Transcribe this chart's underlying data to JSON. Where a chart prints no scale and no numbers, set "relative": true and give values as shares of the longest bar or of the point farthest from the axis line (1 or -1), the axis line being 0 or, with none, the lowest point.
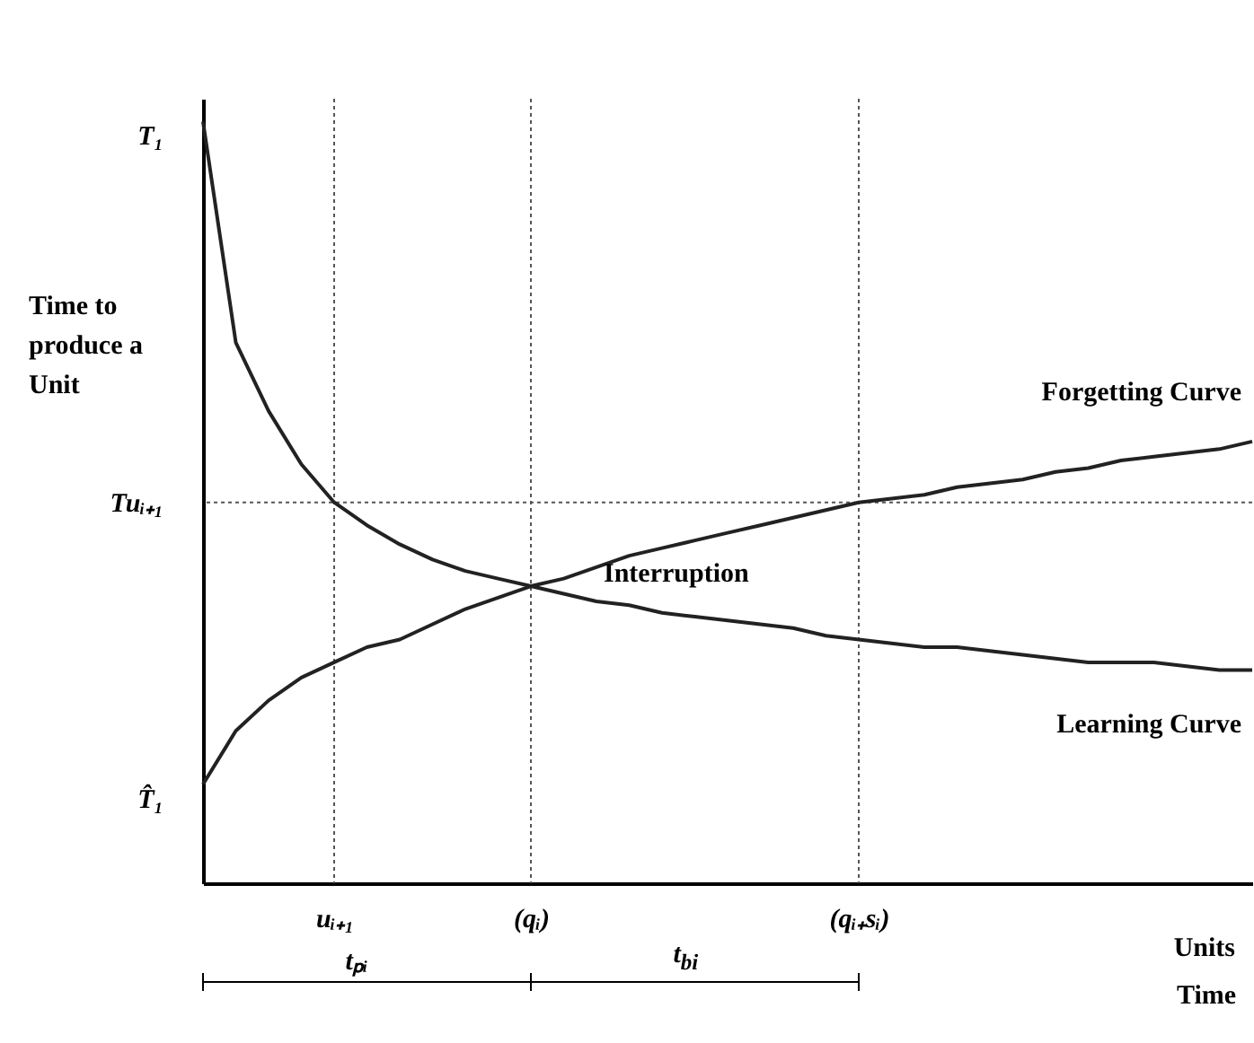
{
  "chart_data": {
    "type": "line",
    "relative": true,
    "ylabel": "Time to produce a Unit",
    "xlabel": "Units",
    "categories": [
      null,
      null,
      null,
      null,
      "uᵢ₊₁",
      null,
      null,
      null,
      null,
      null,
      "(qᵢ)",
      null,
      null,
      null,
      null,
      null,
      null,
      null,
      null,
      null,
      "(qᵢ₊sᵢ)",
      null,
      null,
      null,
      null,
      null,
      null,
      null,
      null,
      null,
      null,
      null,
      null
    ],
    "series": [
      {
        "name": "Forgetting Curve",
        "color": "#222222",
        "values": [
          0.13,
          0.2,
          0.24,
          0.27,
          0.29,
          0.31,
          0.32,
          0.34,
          0.36,
          0.375,
          0.39,
          0.4,
          0.415,
          0.43,
          0.44,
          0.45,
          0.46,
          0.47,
          0.48,
          0.49,
          0.5,
          0.505,
          0.51,
          0.52,
          0.525,
          0.53,
          0.54,
          0.545,
          0.555,
          0.56,
          0.565,
          0.57,
          0.58
        ]
      },
      {
        "name": "Learning Curve",
        "color": "#222222",
        "values": [
          1.0,
          0.71,
          0.62,
          0.55,
          0.5,
          0.47,
          0.445,
          0.425,
          0.41,
          0.4,
          0.39,
          0.38,
          0.37,
          0.365,
          0.355,
          0.35,
          0.345,
          0.34,
          0.335,
          0.325,
          0.32,
          0.315,
          0.31,
          0.31,
          0.305,
          0.3,
          0.295,
          0.29,
          0.29,
          0.29,
          0.285,
          0.28,
          0.28
        ]
      }
    ],
    "ref_lines": [
      {
        "axis": "y",
        "value": 0.5,
        "label": "Tuᵢ₊₁",
        "line_style": "dotted",
        "color": "#555555"
      },
      {
        "axis": "x",
        "value": "uᵢ₊₁",
        "line_style": "dotted",
        "color": "#555555"
      },
      {
        "axis": "x",
        "value": "(qᵢ)",
        "line_style": "dotted",
        "color": "#555555"
      },
      {
        "axis": "x",
        "value": "(qᵢ₊sᵢ)",
        "line_style": "dotted",
        "color": "#555555"
      }
    ],
    "annotations": [
      "T₁",
      "T̂₁",
      "Interruption",
      "tₚᵢ",
      "t$_{bi}$",
      "Time"
    ],
    "legend": false,
    "line_style": "solid",
    "marker": "none"
  }
}
